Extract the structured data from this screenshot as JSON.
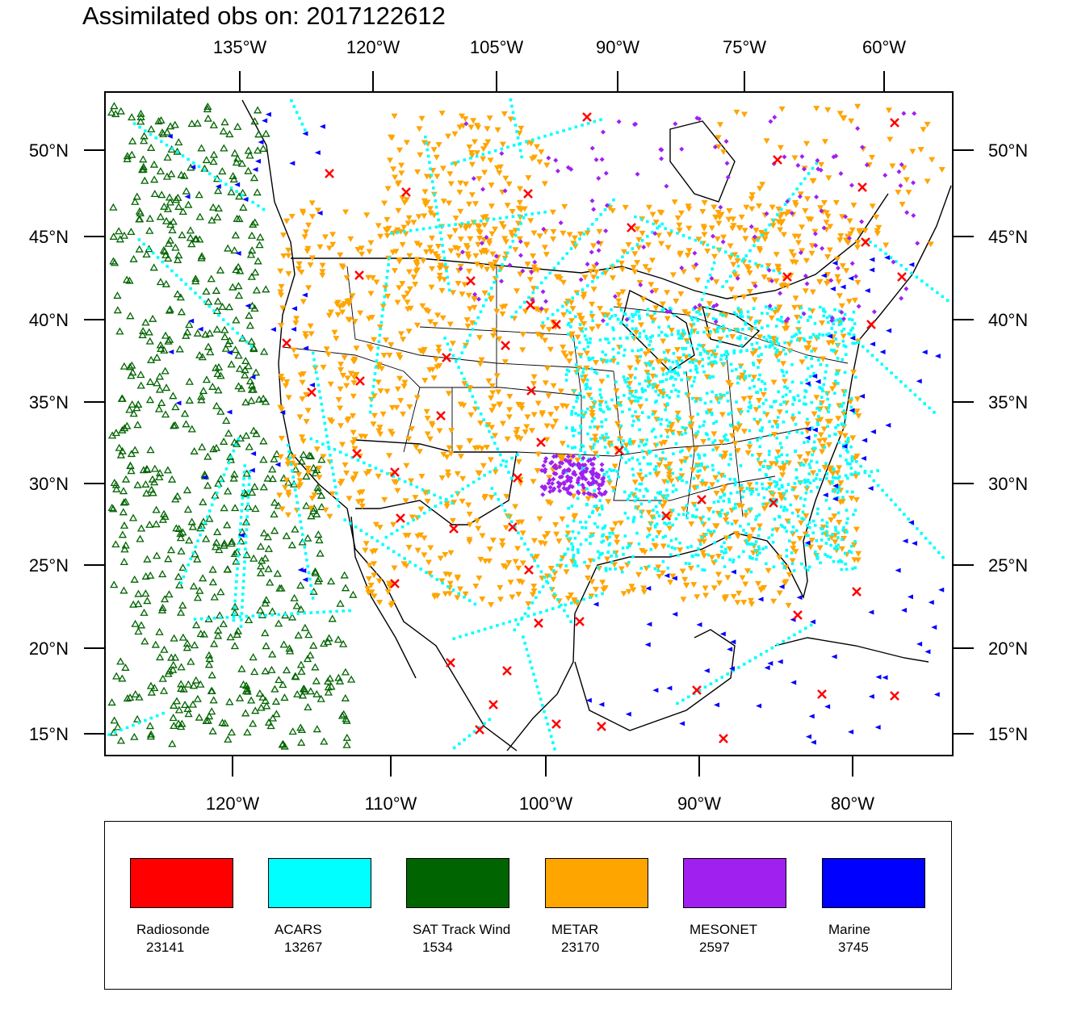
{
  "title": "Assimilated obs on: 2017122612",
  "map": {
    "top_lon_labels": [
      "135°W",
      "120°W",
      "105°W",
      "90°W",
      "75°W",
      "60°W"
    ],
    "bottom_lon_labels": [
      "120°W",
      "110°W",
      "100°W",
      "90°W",
      "80°W"
    ],
    "lat_labels": [
      "50°N",
      "45°N",
      "40°N",
      "35°N",
      "30°N",
      "25°N",
      "20°N",
      "15°N"
    ]
  },
  "legend": [
    {
      "label": "Radiosonde",
      "count": "23141",
      "color": "#ff0000",
      "marker": "x-cross"
    },
    {
      "label": "ACARS",
      "count": "13267",
      "color": "#00ffff",
      "marker": "square-dot"
    },
    {
      "label": "SAT Track Wind",
      "count": "1534",
      "color": "#006400",
      "marker": "triangle-up-open"
    },
    {
      "label": "METAR",
      "count": "23170",
      "color": "#ffa500",
      "marker": "triangle-down"
    },
    {
      "label": "MESONET",
      "count": "2597",
      "color": "#a020f0",
      "marker": "diamond"
    },
    {
      "label": "Marine",
      "count": "3745",
      "color": "#0000ff",
      "marker": "triangle-left"
    }
  ]
}
